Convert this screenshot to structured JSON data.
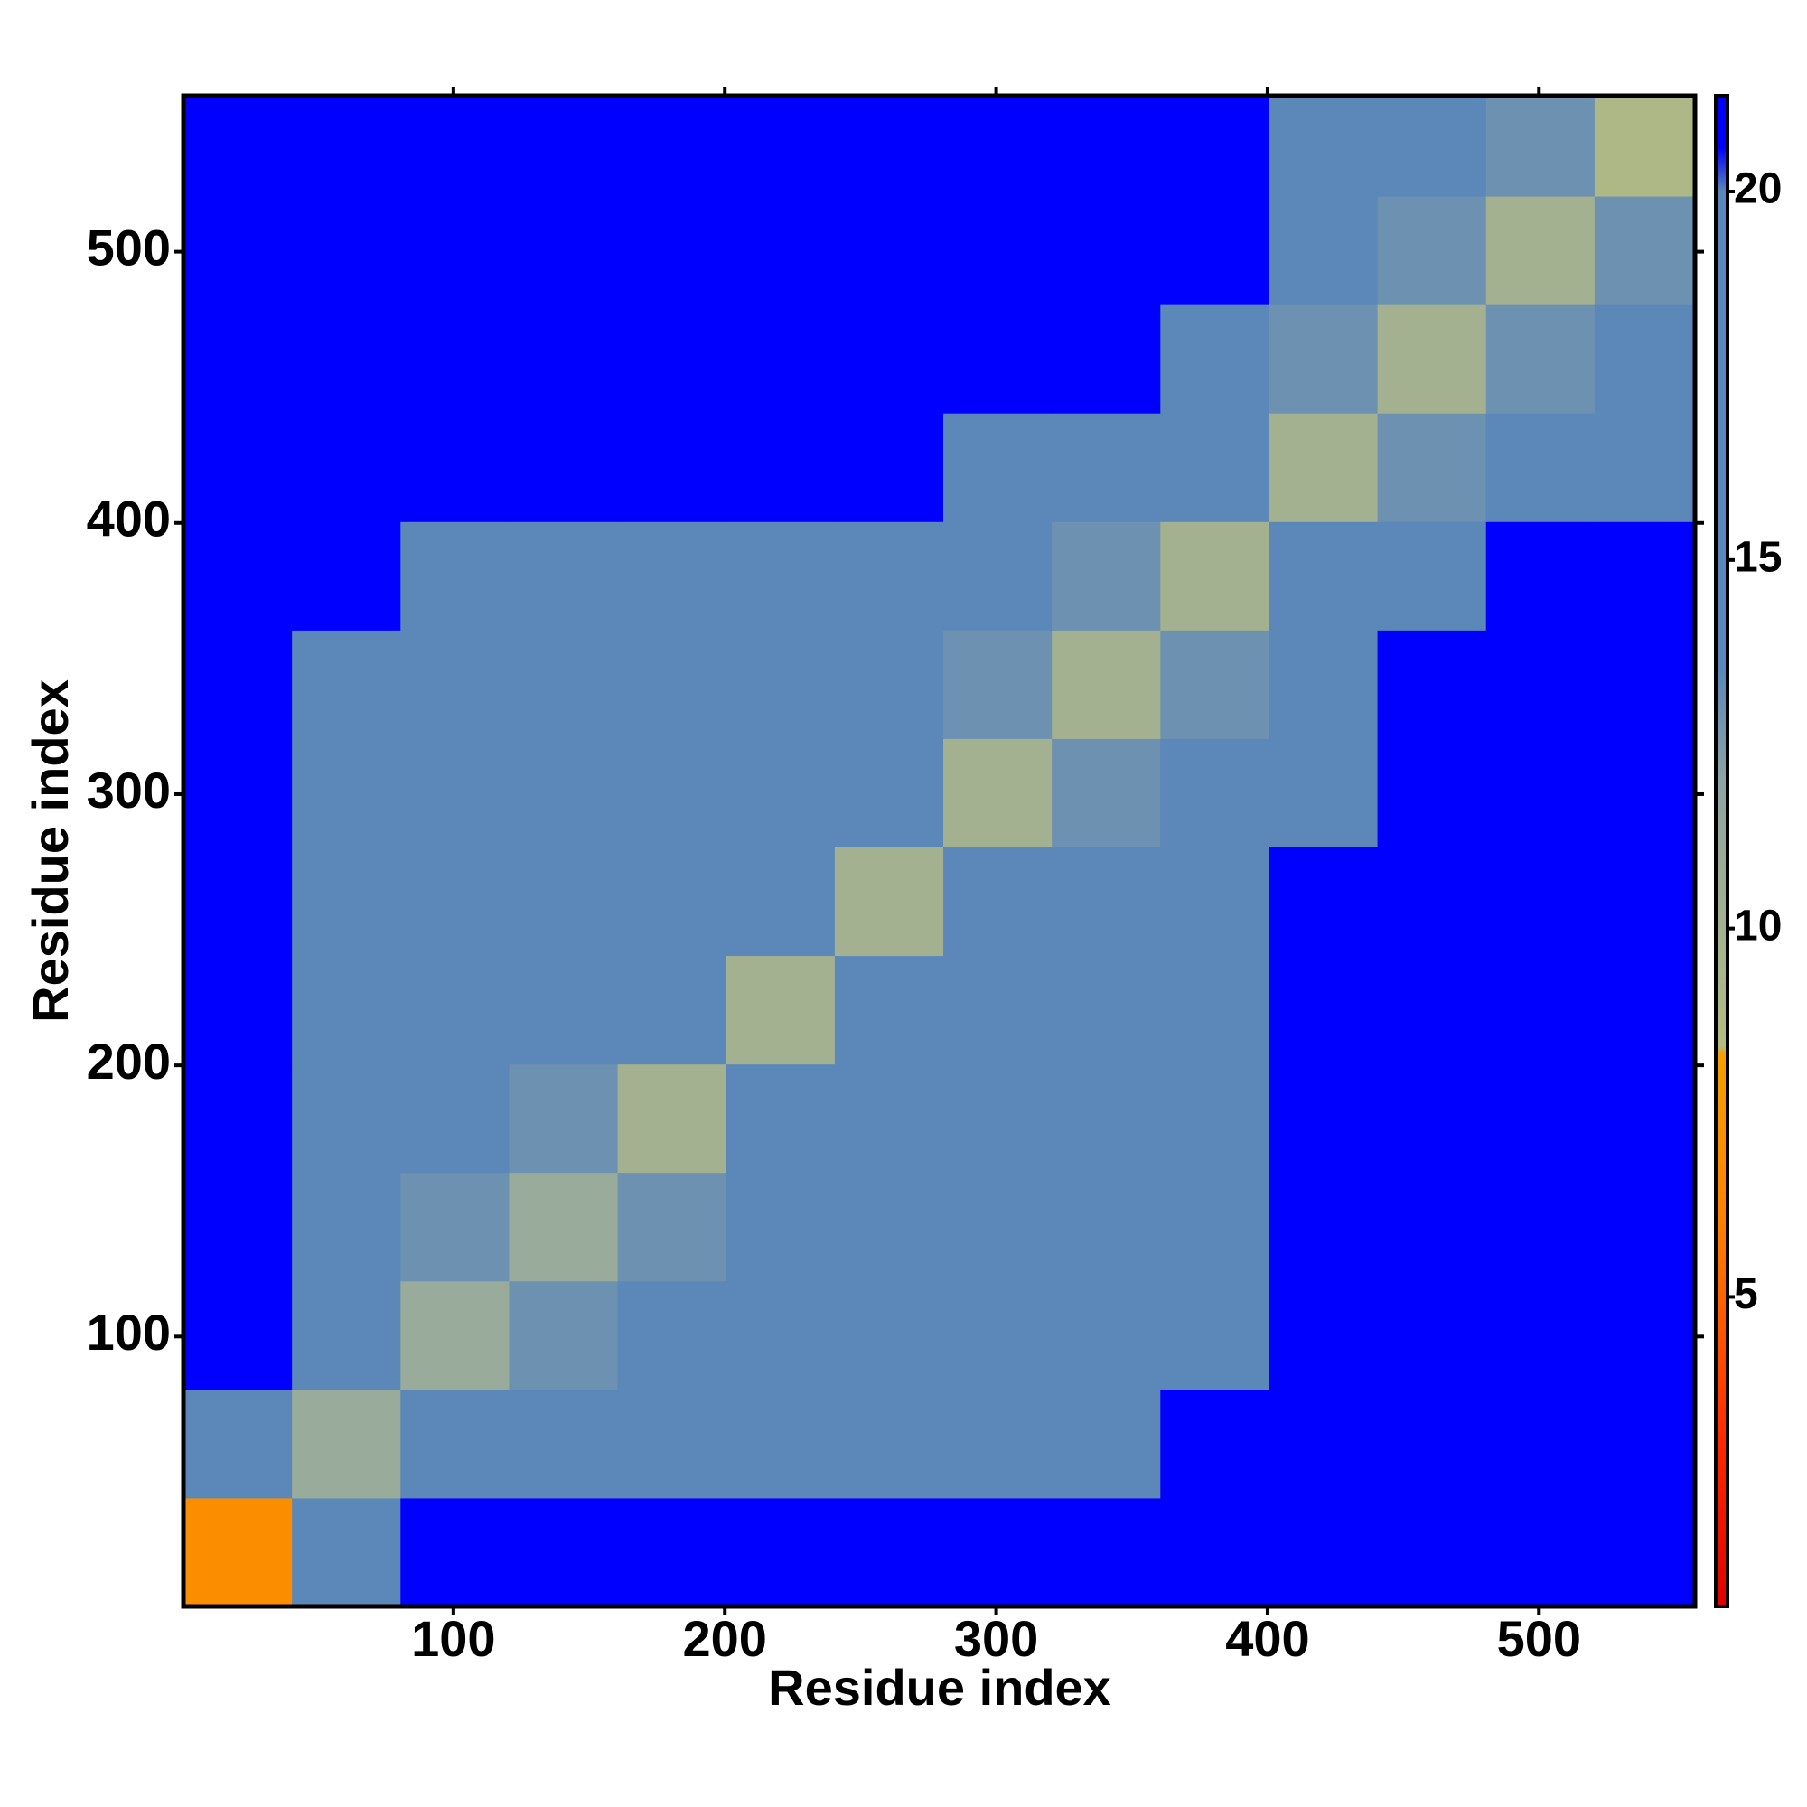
{
  "chart_data": {
    "type": "heatmap",
    "x_label": "Residue index",
    "y_label": "Residue index",
    "xbins": [
      0.5,
      40.5,
      80.5,
      120.5,
      160.5,
      200.5,
      240.5,
      280.5,
      320.5,
      360.5,
      400.5,
      440.5,
      480.5,
      520.5,
      557.5
    ],
    "ybins": [
      0.5,
      40.5,
      80.5,
      120.5,
      160.5,
      200.5,
      240.5,
      280.5,
      320.5,
      360.5,
      400.5,
      440.5,
      480.5,
      520.5,
      557.5
    ],
    "values": [
      [
        7,
        19,
        21,
        21,
        21,
        21,
        21,
        21,
        21,
        21,
        21,
        21,
        21,
        21
      ],
      [
        19,
        11,
        14,
        15,
        16,
        17,
        19,
        20,
        20,
        21,
        21,
        21,
        21,
        21
      ],
      [
        21,
        14,
        11,
        13,
        15,
        16,
        18,
        19,
        20,
        20,
        21,
        21,
        21,
        21
      ],
      [
        21,
        15,
        13,
        11,
        13,
        15,
        17,
        19,
        19,
        20,
        21,
        21,
        21,
        21
      ],
      [
        21,
        16,
        15,
        13,
        10,
        14,
        17,
        19,
        19,
        20,
        21,
        21,
        21,
        21
      ],
      [
        21,
        17,
        16,
        15,
        14,
        10,
        16,
        19,
        19,
        20,
        21,
        21,
        21,
        21
      ],
      [
        21,
        19,
        18,
        17,
        17,
        16,
        10,
        15,
        17,
        18,
        21,
        21,
        21,
        21
      ],
      [
        21,
        20,
        19,
        19,
        19,
        19,
        15,
        10,
        13,
        15,
        20,
        21,
        21,
        21
      ],
      [
        21,
        20,
        20,
        19,
        19,
        19,
        17,
        13,
        10,
        13,
        19,
        21,
        21,
        21
      ],
      [
        21,
        21,
        20,
        20,
        20,
        20,
        18,
        15,
        13,
        10,
        16,
        19,
        21,
        21
      ],
      [
        21,
        21,
        21,
        21,
        21,
        21,
        21,
        20,
        19,
        16,
        10,
        13,
        15,
        17
      ],
      [
        21,
        21,
        21,
        21,
        21,
        21,
        21,
        21,
        21,
        19,
        13,
        10,
        13,
        15
      ],
      [
        21,
        21,
        21,
        21,
        21,
        21,
        21,
        21,
        21,
        21,
        15,
        13,
        10,
        13
      ],
      [
        21,
        21,
        21,
        21,
        21,
        21,
        21,
        21,
        21,
        21,
        17,
        15,
        13,
        9
      ]
    ],
    "xlim": [
      0.5,
      557.5
    ],
    "ylim": [
      0.5,
      557.5
    ],
    "xticks": [
      100,
      200,
      300,
      400,
      500
    ],
    "yticks": [
      100,
      200,
      300,
      400,
      500
    ],
    "clim": [
      0.8,
      21.3
    ],
    "cticks": [
      5,
      10,
      15,
      20
    ],
    "colorscale": [
      [
        0.8,
        "#e00000"
      ],
      [
        3,
        "#ff2800"
      ],
      [
        6,
        "#ff8000"
      ],
      [
        8.3,
        "#f5a000"
      ],
      [
        8.4,
        "#b4bc80"
      ],
      [
        12,
        "#8ea4a4"
      ],
      [
        13.5,
        "#5b88b8"
      ],
      [
        20,
        "#5b88b8"
      ],
      [
        20.6,
        "#0000ff"
      ],
      [
        21.3,
        "#0000ff"
      ]
    ]
  }
}
